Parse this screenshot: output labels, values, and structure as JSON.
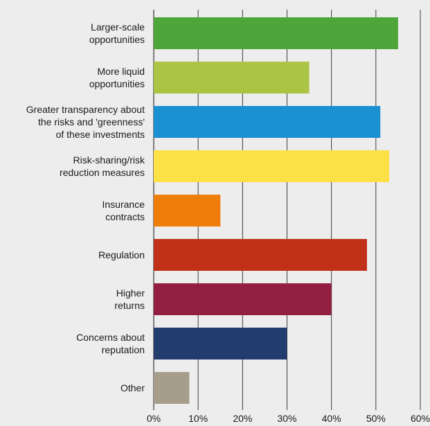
{
  "chart_data": {
    "type": "bar",
    "orientation": "horizontal",
    "categories": [
      [
        "Larger-scale",
        "opportunities"
      ],
      [
        "More liquid",
        "opportunities"
      ],
      [
        "Greater transparency about",
        "the risks and 'greenness'",
        "of these investments"
      ],
      [
        "Risk-sharing/risk",
        "reduction measures"
      ],
      [
        "Insurance",
        "contracts"
      ],
      [
        "Regulation"
      ],
      [
        "Higher",
        "returns"
      ],
      [
        "Concerns about",
        "reputation"
      ],
      [
        "Other"
      ]
    ],
    "values": [
      55,
      35,
      51,
      53,
      15,
      48,
      40,
      30,
      8
    ],
    "colors": [
      "#4ea53a",
      "#acc443",
      "#1a8fd1",
      "#fde046",
      "#ef7d0a",
      "#c1311a",
      "#921f41",
      "#223c6e",
      "#a69d8c"
    ],
    "xlim": [
      0,
      60
    ],
    "xticks": [
      "0%",
      "10%",
      "20%",
      "30%",
      "40%",
      "50%",
      "60%"
    ],
    "grid": true,
    "title": "",
    "xlabel": "",
    "ylabel": ""
  }
}
